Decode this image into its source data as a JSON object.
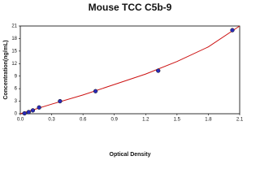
{
  "chart_data": {
    "type": "scatter",
    "title": "Mouse TCC C5b-9",
    "x_label": "Optical Density",
    "y_label": "Concentration(ng/mL)",
    "xlim": [
      0,
      2.1
    ],
    "ylim": [
      0,
      21
    ],
    "xticks": [
      {
        "value": 0,
        "label": "0.0"
      },
      0.3,
      0.6,
      0.9,
      1.2,
      1.5,
      1.8,
      2.1
    ],
    "yticks": [
      0,
      3,
      6,
      9,
      12,
      15,
      18,
      21
    ],
    "points": {
      "color": "#2a2ab8",
      "x": [
        0.04,
        0.08,
        0.12,
        0.18,
        0.38,
        0.72,
        1.32,
        2.03
      ],
      "y": [
        0.1,
        0.4,
        0.8,
        1.5,
        3,
        5.4,
        10.3,
        20
      ]
    },
    "fit": {
      "color": "#cc1111",
      "x": [
        0,
        0.3,
        0.6,
        0.9,
        1.2,
        1.5,
        1.8,
        2.1
      ],
      "y": [
        0,
        2.3,
        4.5,
        7.0,
        9.5,
        12.5,
        16.0,
        21.0
      ]
    }
  }
}
